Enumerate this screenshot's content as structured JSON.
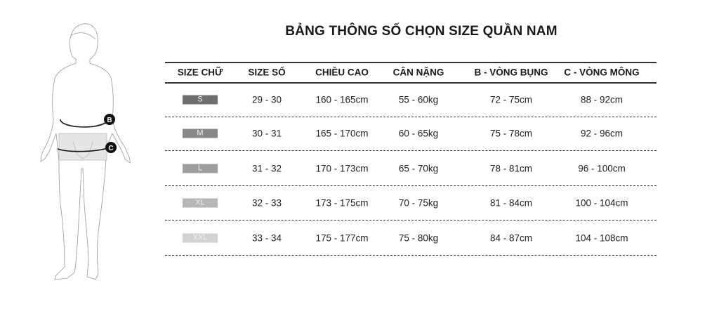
{
  "title": "BẢNG THÔNG SỐ CHỌN SIZE QUẦN NAM",
  "figure": {
    "labels": [
      "B",
      "C"
    ]
  },
  "headers": [
    "SIZE CHỮ",
    "SIZE SỐ",
    "CHIỀU CAO",
    "CÂN NẶNG",
    "B - VÒNG BỤNG",
    "C - VÒNG MÔNG"
  ],
  "rows": [
    {
      "size": "S",
      "color": "#6e6e6e",
      "cells": [
        "29 - 30",
        "160 - 165cm",
        "55 - 60kg",
        "72 - 75cm",
        "88 - 92cm"
      ]
    },
    {
      "size": "M",
      "color": "#888888",
      "cells": [
        "30 - 31",
        "165 - 170cm",
        "60 - 65kg",
        "75 - 78cm",
        "92 - 96cm"
      ]
    },
    {
      "size": "L",
      "color": "#9e9e9e",
      "cells": [
        "31 - 32",
        "170 - 173cm",
        "65 - 70kg",
        "78 - 81cm",
        "96 - 100cm"
      ]
    },
    {
      "size": "XL",
      "color": "#b6b6b6",
      "cells": [
        "32 - 33",
        "173 - 175cm",
        "70 - 75kg",
        "81 - 84cm",
        "100 - 104cm"
      ]
    },
    {
      "size": "XXL",
      "color": "#d2d2d2",
      "cells": [
        "33 - 34",
        "175 - 177cm",
        "75 - 80kg",
        "84 - 87cm",
        "104 - 108cm"
      ]
    }
  ]
}
